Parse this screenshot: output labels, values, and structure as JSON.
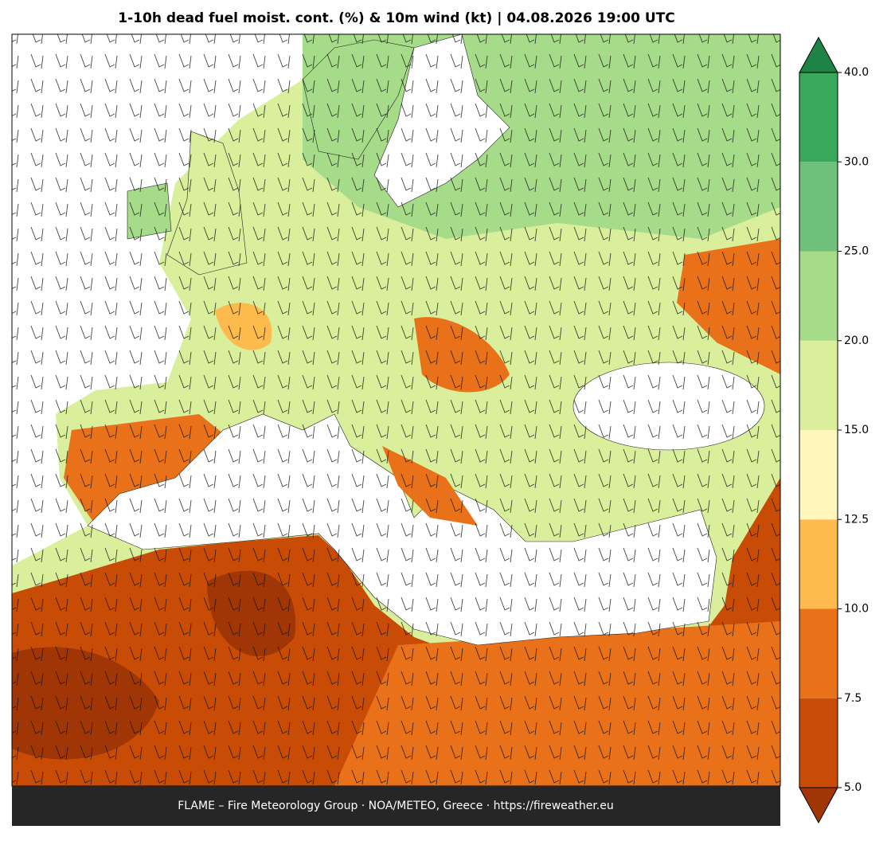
{
  "title": "1-10h dead fuel moist. cont. (%) & 10m wind (kt)  |  04.08.2026 19:00 UTC",
  "footer": "FLAME – Fire Meteorology Group · NOA/METEO, Greece · https://fireweather.eu",
  "colorbar": {
    "ticks": [
      {
        "value": 5,
        "label": "5.0"
      },
      {
        "value": 7.5,
        "label": "7.5"
      },
      {
        "value": 10,
        "label": "10.0"
      },
      {
        "value": 12.5,
        "label": "12.5"
      },
      {
        "value": 15,
        "label": "15.0"
      },
      {
        "value": 20,
        "label": "20.0"
      },
      {
        "value": 25,
        "label": "25.0"
      },
      {
        "value": 30,
        "label": "30.0"
      },
      {
        "value": 40,
        "label": "40.0"
      }
    ],
    "colors": [
      "#c84c05",
      "#e8711a",
      "#fdbb4e",
      "#fff6bb",
      "#d9ef9b",
      "#a6db8a",
      "#6fc07a",
      "#3aa85b"
    ],
    "under_color": "#a03506",
    "over_color": "#1e8446"
  }
}
